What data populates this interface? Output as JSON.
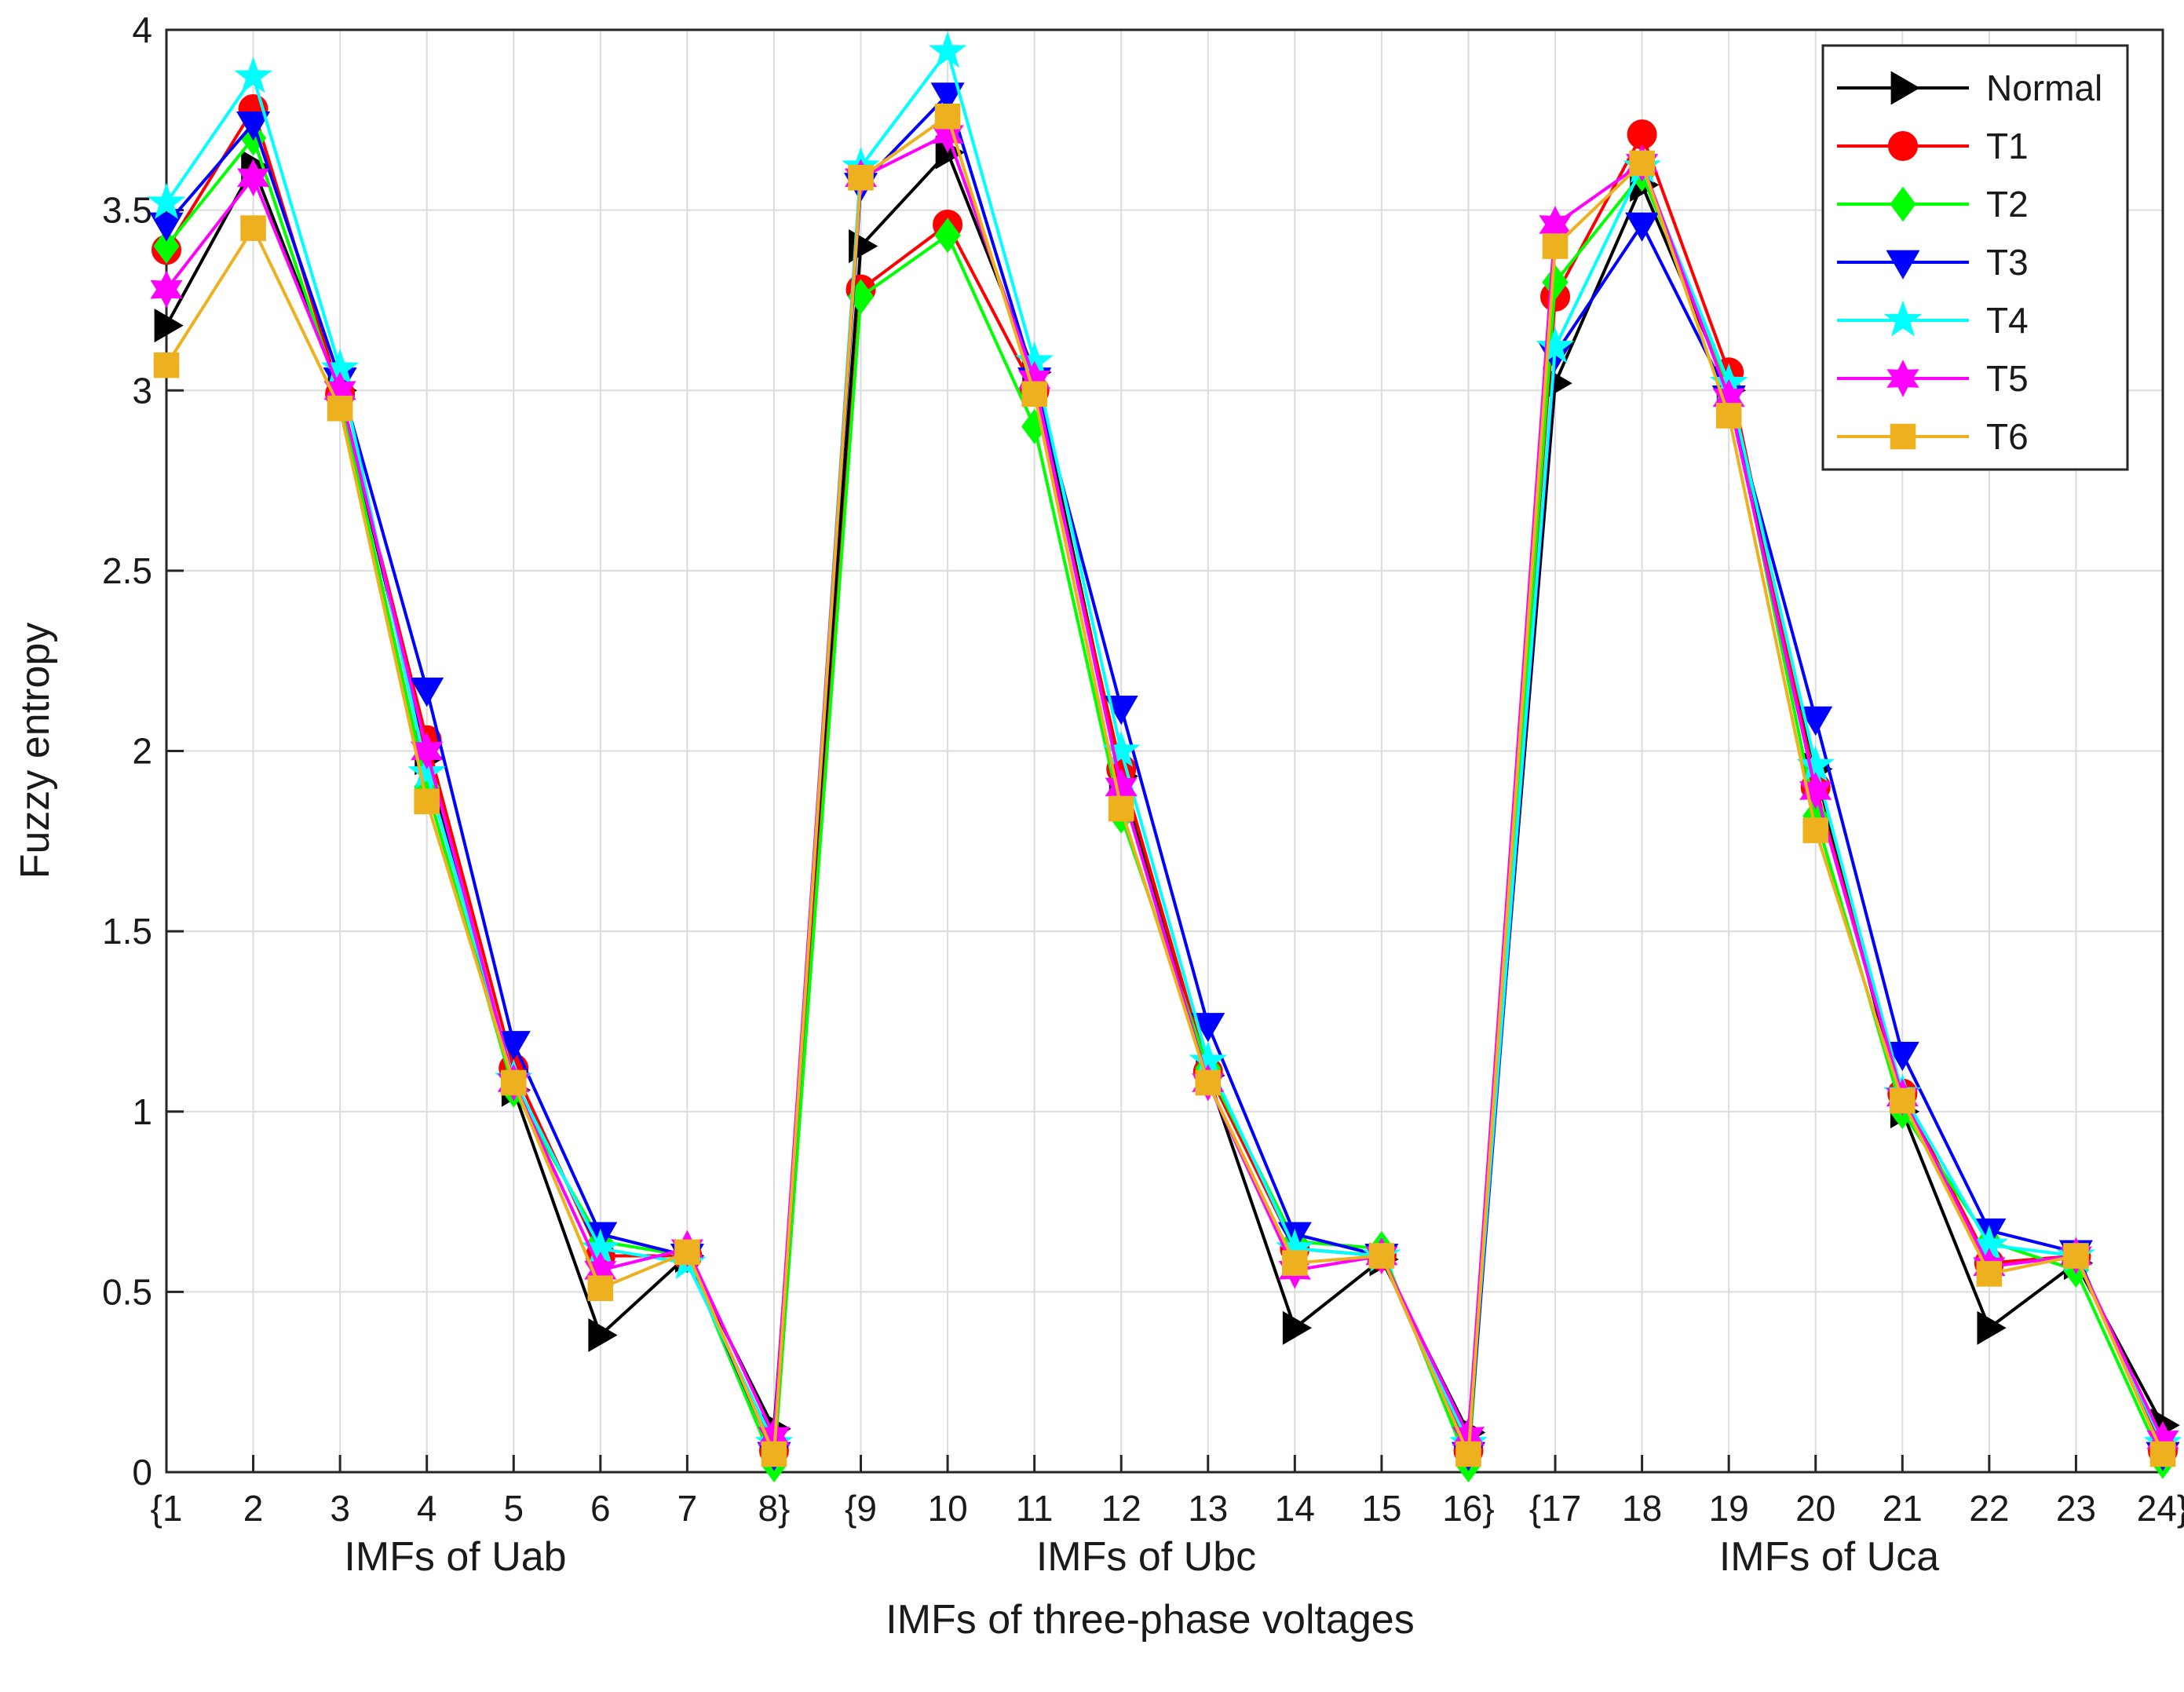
{
  "chart_data": {
    "type": "line",
    "title": "",
    "ylabel": "Fuzzy entropy",
    "xlabel": "IMFs of three-phase voltages",
    "group_labels": [
      "IMFs of Uab",
      "IMFs of Ubc",
      "IMFs of Uca"
    ],
    "x": [
      1,
      2,
      3,
      4,
      5,
      6,
      7,
      8,
      9,
      10,
      11,
      12,
      13,
      14,
      15,
      16,
      17,
      18,
      19,
      20,
      21,
      22,
      23,
      24
    ],
    "x_tick_labels": [
      "{1",
      "2",
      "3",
      "4",
      "5",
      "6",
      "7",
      "8}",
      "{9",
      "10",
      "11",
      "12",
      "13",
      "14",
      "15",
      "16}",
      "{17",
      "18",
      "19",
      "20",
      "21",
      "22",
      "23",
      "24}"
    ],
    "xlim": [
      1,
      24
    ],
    "ylim": [
      0,
      4
    ],
    "y_ticks": [
      0,
      0.5,
      1,
      1.5,
      2,
      2.5,
      3,
      3.5,
      4
    ],
    "y_tick_labels": [
      "0",
      "0.5",
      "1",
      "1.5",
      "2",
      "2.5",
      "3",
      "3.5",
      "4"
    ],
    "grid": true,
    "legend_position": "top-right",
    "series": [
      {
        "name": "Normal",
        "color": "#000000",
        "marker": "triangle-right",
        "values": [
          3.18,
          3.62,
          3.0,
          1.98,
          1.06,
          0.38,
          0.6,
          0.12,
          3.4,
          3.66,
          3.05,
          1.93,
          1.1,
          0.4,
          0.59,
          0.11,
          3.02,
          3.57,
          3.0,
          1.95,
          1.0,
          0.4,
          0.58,
          0.13
        ]
      },
      {
        "name": "T1",
        "color": "#ff0000",
        "marker": "circle",
        "values": [
          3.39,
          3.78,
          2.99,
          2.03,
          1.12,
          0.6,
          0.6,
          0.06,
          3.28,
          3.46,
          3.0,
          1.95,
          1.11,
          0.62,
          0.6,
          0.06,
          3.26,
          3.71,
          3.05,
          1.9,
          1.05,
          0.58,
          0.6,
          0.06
        ]
      },
      {
        "name": "T2",
        "color": "#00ff00",
        "marker": "diamond",
        "values": [
          3.4,
          3.7,
          2.98,
          1.9,
          1.06,
          0.64,
          0.6,
          0.02,
          3.26,
          3.43,
          2.9,
          1.82,
          1.12,
          0.64,
          0.62,
          0.02,
          3.3,
          3.6,
          3.01,
          1.82,
          1.0,
          0.64,
          0.56,
          0.03
        ]
      },
      {
        "name": "T3",
        "color": "#0000ff",
        "marker": "triangle-down",
        "values": [
          3.46,
          3.74,
          3.03,
          2.17,
          1.19,
          0.66,
          0.6,
          0.05,
          3.57,
          3.82,
          3.03,
          2.12,
          1.24,
          0.66,
          0.6,
          0.05,
          3.1,
          3.46,
          2.98,
          2.09,
          1.16,
          0.67,
          0.61,
          0.05
        ]
      },
      {
        "name": "T4",
        "color": "#00ffff",
        "marker": "star",
        "values": [
          3.52,
          3.87,
          3.06,
          1.94,
          1.09,
          0.62,
          0.58,
          0.08,
          3.62,
          3.94,
          3.08,
          2.0,
          1.14,
          0.62,
          0.6,
          0.08,
          3.12,
          3.62,
          3.02,
          1.96,
          1.05,
          0.63,
          0.6,
          0.08
        ]
      },
      {
        "name": "T5",
        "color": "#ff00ff",
        "marker": "hexagram",
        "values": [
          3.28,
          3.59,
          3.0,
          2.0,
          1.08,
          0.56,
          0.62,
          0.1,
          3.59,
          3.71,
          3.03,
          1.9,
          1.08,
          0.56,
          0.6,
          0.1,
          3.46,
          3.63,
          2.98,
          1.89,
          1.04,
          0.57,
          0.6,
          0.09
        ]
      },
      {
        "name": "T6",
        "color": "#edb120",
        "marker": "square",
        "values": [
          3.07,
          3.45,
          2.95,
          1.86,
          1.08,
          0.51,
          0.61,
          0.05,
          3.59,
          3.76,
          2.99,
          1.84,
          1.08,
          0.58,
          0.6,
          0.05,
          3.4,
          3.63,
          2.93,
          1.78,
          1.03,
          0.55,
          0.6,
          0.05
        ]
      }
    ]
  }
}
